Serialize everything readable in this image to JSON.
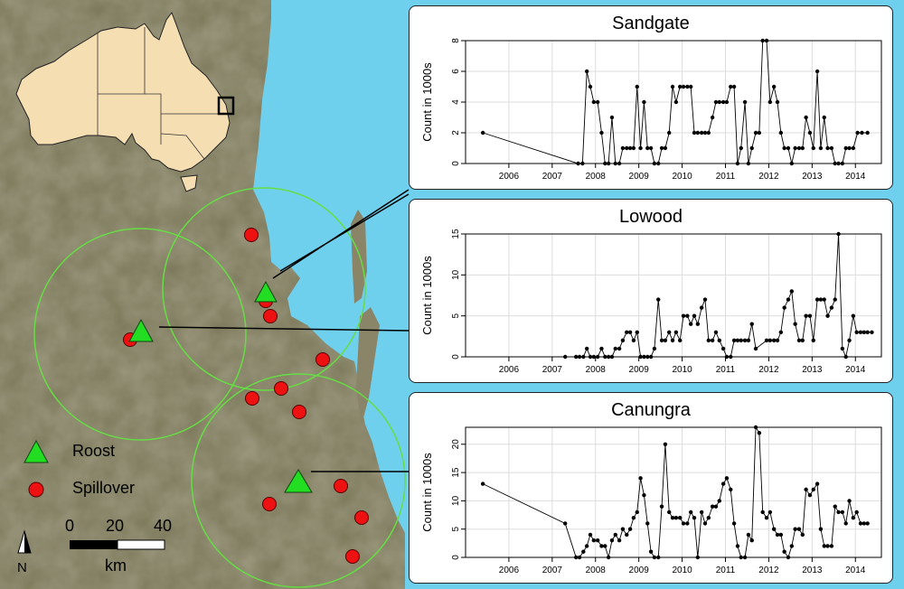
{
  "map": {
    "legend": {
      "roost": "Roost",
      "spillover": "Spillover"
    },
    "scale": {
      "ticks": [
        "0",
        "20",
        "40"
      ],
      "unit": "km"
    },
    "north": "N",
    "colors": {
      "roost": "#22dd22",
      "spillover": "#ee1111",
      "ring": "#66dd44",
      "sea": "#6fd0ee",
      "land": "#7e7a5e",
      "inset_land": "#f6deb3"
    }
  },
  "chart_data": [
    {
      "type": "line",
      "title": "Sandgate",
      "xlabel": "",
      "ylabel": "Count in 1000s",
      "xlim": [
        2005.0,
        2014.6
      ],
      "ylim": [
        0,
        8
      ],
      "xticks": [
        "2006",
        "2007",
        "2008",
        "2009",
        "2010",
        "2011",
        "2012",
        "2013",
        "2014"
      ],
      "yticks": [
        "0",
        "2",
        "4",
        "6",
        "8"
      ],
      "grid": true,
      "series": [
        {
          "x": [
            2005.4,
            2007.6,
            2007.7,
            2007.8,
            2007.88,
            2007.96,
            2008.05,
            2008.14,
            2008.22,
            2008.3,
            2008.38,
            2008.46,
            2008.55,
            2008.63,
            2008.72,
            2008.8,
            2008.88,
            2008.96,
            2009.04,
            2009.12,
            2009.2,
            2009.28,
            2009.36,
            2009.45,
            2009.53,
            2009.61,
            2009.7,
            2009.78,
            2009.86,
            2009.95,
            2010.03,
            2010.12,
            2010.2,
            2010.28,
            2010.36,
            2010.45,
            2010.53,
            2010.61,
            2010.7,
            2010.78,
            2010.86,
            2010.95,
            2011.03,
            2011.12,
            2011.2,
            2011.28,
            2011.36,
            2011.45,
            2011.53,
            2011.61,
            2011.7,
            2011.78,
            2011.86,
            2011.95,
            2012.03,
            2012.12,
            2012.2,
            2012.28,
            2012.36,
            2012.45,
            2012.53,
            2012.61,
            2012.7,
            2012.78,
            2012.86,
            2012.95,
            2013.03,
            2013.12,
            2013.2,
            2013.28,
            2013.36,
            2013.45,
            2013.53,
            2013.61,
            2013.7,
            2013.78,
            2013.86,
            2013.95,
            2014.05,
            2014.15,
            2014.28
          ],
          "y": [
            2,
            0,
            0,
            6,
            5,
            4,
            4,
            2,
            0,
            0,
            3,
            0,
            0,
            1,
            1,
            1,
            1,
            5,
            1,
            4,
            1,
            1,
            0,
            0,
            1,
            1,
            2,
            5,
            4,
            5,
            5,
            5,
            5,
            2,
            2,
            2,
            2,
            2,
            3,
            4,
            4,
            4,
            4,
            5,
            5,
            0,
            1,
            4,
            0,
            1,
            2,
            2,
            8,
            8,
            4,
            5,
            4,
            2,
            1,
            1,
            0,
            1,
            1,
            1,
            3,
            2,
            1,
            6,
            1,
            3,
            1,
            1,
            0,
            0,
            0,
            1,
            1,
            1,
            2,
            2,
            2
          ]
        }
      ]
    },
    {
      "type": "line",
      "title": "Lowood",
      "xlabel": "",
      "ylabel": "Count in 1000s",
      "xlim": [
        2005.0,
        2014.6
      ],
      "ylim": [
        0,
        15
      ],
      "xticks": [
        "2006",
        "2007",
        "2008",
        "2009",
        "2010",
        "2011",
        "2012",
        "2013",
        "2014"
      ],
      "yticks": [
        "0",
        "5",
        "10",
        "15"
      ],
      "grid": true,
      "series": [
        {
          "x": [
            2007.3,
            2007.55,
            2007.63,
            2007.72,
            2007.8,
            2007.88,
            2007.96,
            2008.05,
            2008.14,
            2008.22,
            2008.3,
            2008.38,
            2008.46,
            2008.55,
            2008.63,
            2008.72,
            2008.8,
            2008.88,
            2008.96,
            2009.04,
            2009.12,
            2009.2,
            2009.28,
            2009.36,
            2009.45,
            2009.53,
            2009.61,
            2009.7,
            2009.78,
            2009.86,
            2009.95,
            2010.03,
            2010.12,
            2010.2,
            2010.28,
            2010.36,
            2010.45,
            2010.53,
            2010.61,
            2010.7,
            2010.78,
            2010.86,
            2010.95,
            2011.03,
            2011.12,
            2011.2,
            2011.28,
            2011.36,
            2011.45,
            2011.53,
            2011.61,
            2011.7,
            2011.95,
            2012.03,
            2012.12,
            2012.2,
            2012.28,
            2012.36,
            2012.45,
            2012.53,
            2012.61,
            2012.7,
            2012.78,
            2012.86,
            2012.95,
            2013.03,
            2013.12,
            2013.2,
            2013.28,
            2013.36,
            2013.45,
            2013.53,
            2013.61,
            2013.7,
            2013.78,
            2013.86,
            2013.95,
            2014.03,
            2014.12,
            2014.2,
            2014.28,
            2014.38
          ],
          "y": [
            0,
            0,
            0,
            0,
            1,
            0,
            0,
            0,
            1,
            0,
            0,
            0,
            1,
            1,
            2,
            3,
            3,
            2,
            3,
            0,
            0,
            0,
            0,
            1,
            7,
            2,
            2,
            3,
            2,
            3,
            2,
            5,
            5,
            4,
            5,
            4,
            6,
            7,
            2,
            2,
            3,
            2,
            1,
            0,
            0,
            2,
            2,
            2,
            2,
            2,
            4,
            1,
            2,
            2,
            2,
            2,
            3,
            6,
            7,
            8,
            4,
            2,
            2,
            5,
            5,
            2,
            7,
            7,
            7,
            5,
            6,
            7,
            15,
            1,
            0,
            2,
            5,
            3,
            3,
            3,
            3,
            3
          ]
        }
      ]
    },
    {
      "type": "line",
      "title": "Canungra",
      "xlabel": "",
      "ylabel": "Count in 1000s",
      "xlim": [
        2005.0,
        2014.6
      ],
      "ylim": [
        0,
        23
      ],
      "xticks": [
        "2006",
        "2007",
        "2008",
        "2009",
        "2010",
        "2011",
        "2012",
        "2013",
        "2014"
      ],
      "yticks": [
        "0",
        "5",
        "10",
        "15",
        "20"
      ],
      "grid": true,
      "series": [
        {
          "x": [
            2005.4,
            2007.3,
            2007.55,
            2007.63,
            2007.72,
            2007.8,
            2007.88,
            2007.96,
            2008.05,
            2008.14,
            2008.22,
            2008.3,
            2008.38,
            2008.46,
            2008.55,
            2008.63,
            2008.72,
            2008.8,
            2008.88,
            2008.96,
            2009.04,
            2009.12,
            2009.2,
            2009.28,
            2009.36,
            2009.45,
            2009.53,
            2009.61,
            2009.7,
            2009.78,
            2009.86,
            2009.95,
            2010.03,
            2010.12,
            2010.2,
            2010.28,
            2010.36,
            2010.45,
            2010.53,
            2010.61,
            2010.7,
            2010.78,
            2010.86,
            2010.95,
            2011.03,
            2011.12,
            2011.2,
            2011.28,
            2011.36,
            2011.45,
            2011.53,
            2011.61,
            2011.7,
            2011.78,
            2011.86,
            2011.95,
            2012.03,
            2012.12,
            2012.2,
            2012.28,
            2012.36,
            2012.45,
            2012.53,
            2012.61,
            2012.7,
            2012.78,
            2012.86,
            2012.95,
            2013.03,
            2013.12,
            2013.2,
            2013.28,
            2013.36,
            2013.45,
            2013.53,
            2013.61,
            2013.7,
            2013.78,
            2013.86,
            2013.95,
            2014.03,
            2014.12,
            2014.2,
            2014.28
          ],
          "y": [
            13,
            6,
            0,
            0,
            1,
            2,
            4,
            3,
            3,
            2,
            2,
            0,
            3,
            4,
            3,
            5,
            4,
            5,
            7,
            8,
            14,
            11,
            6,
            1,
            0,
            0,
            9,
            20,
            8,
            7,
            7,
            7,
            6,
            6,
            8,
            7,
            0,
            8,
            6,
            7,
            9,
            9,
            10,
            13,
            14,
            12,
            6,
            2,
            0,
            0,
            4,
            3,
            23,
            22,
            8,
            7,
            8,
            5,
            4,
            4,
            1,
            0,
            2,
            5,
            5,
            4,
            12,
            11,
            12,
            13,
            5,
            2,
            2,
            2,
            9,
            8,
            8,
            6,
            10,
            7,
            8,
            6,
            6,
            6
          ]
        }
      ]
    }
  ]
}
